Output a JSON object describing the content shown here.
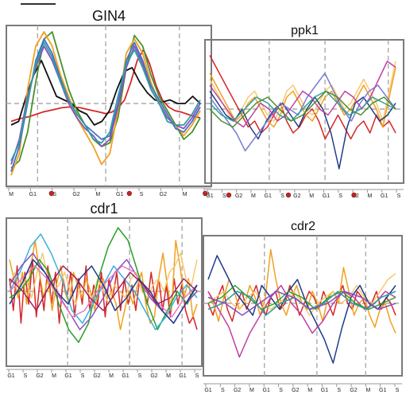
{
  "chart_data": [
    {
      "type": "line",
      "title": "GIN4",
      "phase_labels": [
        "M",
        "G1",
        "S",
        "G2",
        "M",
        "G1",
        "S",
        "G2",
        "M",
        "G1"
      ],
      "xlim": [
        0,
        60
      ],
      "ylim": [
        -1,
        1
      ],
      "marker_color": "#cc2222",
      "series": [
        {
          "color": "#d62728",
          "values": [
            -0.25,
            -0.22,
            -0.2,
            -0.18,
            -0.15,
            -0.12,
            -0.1,
            -0.08,
            -0.06,
            -0.05,
            -0.05,
            -0.06,
            -0.08,
            -0.1,
            -0.12,
            -0.14,
            -0.12,
            -0.06,
            0.05,
            0.3,
            0.6,
            0.75,
            0.55,
            0.25,
            0.05,
            -0.05,
            -0.1,
            -0.12,
            -0.15,
            -0.18,
            -0.2
          ]
        },
        {
          "color": "#111111",
          "values": [
            -0.3,
            -0.25,
            0.1,
            0.4,
            0.6,
            0.35,
            0.1,
            0.05,
            0.0,
            -0.1,
            -0.15,
            -0.3,
            -0.25,
            -0.1,
            0.2,
            0.45,
            0.5,
            0.3,
            0.15,
            0.05,
            0.02,
            0.05,
            0.0,
            0.0,
            0.1,
            0.0
          ]
        },
        {
          "color": "#4a8f2a",
          "values": [
            -0.9,
            -0.8,
            -0.4,
            0.3,
            0.9,
            1.0,
            0.6,
            0.2,
            -0.1,
            -0.3,
            -0.5,
            -0.6,
            -0.55,
            -0.2,
            0.5,
            0.95,
            0.8,
            0.4,
            0.1,
            -0.1,
            -0.3,
            -0.5,
            -0.4,
            -0.2
          ]
        },
        {
          "color": "#f0a020",
          "values": [
            -1.0,
            -0.7,
            0.2,
            0.8,
            1.0,
            0.8,
            0.4,
            0.1,
            -0.2,
            -0.4,
            -0.6,
            -0.85,
            -0.7,
            -0.1,
            0.7,
            0.9,
            0.7,
            0.3,
            0.0,
            -0.2,
            -0.3,
            -0.45,
            -0.3,
            -0.1
          ]
        },
        {
          "color": "#4472c4",
          "values": [
            -0.95,
            -0.6,
            0.0,
            0.6,
            0.9,
            0.7,
            0.35,
            0.05,
            -0.15,
            -0.3,
            -0.4,
            -0.5,
            -0.45,
            0.0,
            0.6,
            0.85,
            0.6,
            0.25,
            0.05,
            -0.15,
            -0.35,
            -0.4,
            -0.25,
            -0.05
          ]
        },
        {
          "color": "#8a4fbf",
          "values": [
            -0.85,
            -0.5,
            0.1,
            0.5,
            0.8,
            0.6,
            0.3,
            0.0,
            -0.2,
            -0.35,
            -0.45,
            -0.6,
            -0.5,
            -0.05,
            0.5,
            0.8,
            0.55,
            0.2,
            0.0,
            -0.2,
            -0.3,
            -0.35,
            -0.2,
            0.0
          ]
        },
        {
          "color": "#2ca0a0",
          "values": [
            -0.8,
            -0.55,
            0.05,
            0.55,
            0.85,
            0.65,
            0.3,
            0.05,
            -0.15,
            -0.3,
            -0.5,
            -0.55,
            -0.4,
            0.1,
            0.55,
            0.75,
            0.5,
            0.2,
            0.0,
            -0.25,
            -0.3,
            -0.3,
            -0.15,
            0.05
          ]
        }
      ]
    },
    {
      "type": "line",
      "title": "ppk1",
      "phase_labels": [
        "G1",
        "S",
        "G2",
        "M",
        "G1",
        "S",
        "G2",
        "M",
        "G1",
        "S",
        "G2",
        "M",
        "G1",
        "S"
      ],
      "xlim": [
        0,
        60
      ],
      "ylim": [
        -1,
        1
      ],
      "marker_color": "#cc2222",
      "series": [
        {
          "color": "#d62728",
          "values": [
            0.9,
            0.7,
            0.5,
            0.3,
            0.1,
            -0.1,
            -0.3,
            -0.2,
            -0.4,
            -0.3,
            -0.1,
            0.1,
            -0.2,
            -0.4,
            -0.3,
            -0.1,
            0.0,
            -0.2,
            -0.5,
            -0.3,
            -0.1,
            -0.3,
            -0.5,
            -0.3,
            -0.2,
            -0.4,
            -0.1,
            -0.3,
            -0.2,
            -0.4
          ]
        },
        {
          "color": "#f0a020",
          "values": [
            0.6,
            0.4,
            0.2,
            0.0,
            -0.2,
            -0.1,
            0.1,
            0.2,
            0.0,
            -0.2,
            -0.3,
            -0.1,
            0.2,
            0.3,
            0.1,
            -0.1,
            -0.2,
            0.0,
            0.2,
            0.3,
            0.1,
            -0.1,
            0.0,
            0.2,
            0.4,
            0.2,
            0.0,
            -0.3,
            0.2,
            0.7
          ]
        },
        {
          "color": "#f8c870",
          "values": [
            0.5,
            0.3,
            0.1,
            -0.1,
            -0.2,
            0.0,
            0.2,
            0.3,
            0.1,
            -0.1,
            -0.2,
            0.0,
            0.3,
            0.4,
            0.2,
            0.0,
            -0.1,
            0.1,
            0.3,
            0.4,
            0.2,
            0.0,
            0.1,
            0.3,
            0.5,
            0.3,
            0.1,
            -0.2,
            0.3,
            0.8
          ]
        },
        {
          "color": "#1f3c88",
          "values": [
            0.3,
            0.1,
            -0.1,
            -0.2,
            0.0,
            -0.3,
            -0.5,
            -0.2,
            0.0,
            0.1,
            -0.1,
            -0.3,
            0.0,
            0.2,
            0.0,
            -0.4,
            -1.0,
            -0.3,
            0.1,
            0.2,
            0.0,
            -0.2,
            -0.1,
            0.1
          ]
        },
        {
          "color": "#7a7fd0",
          "values": [
            0.2,
            0.0,
            -0.2,
            -0.4,
            -0.7,
            -0.5,
            -0.3,
            -0.1,
            0.1,
            0.0,
            -0.1,
            0.2,
            0.4,
            0.6,
            0.3,
            0.0,
            -0.2,
            0.1,
            0.3,
            0.4,
            0.2,
            0.0
          ]
        },
        {
          "color": "#c03fa0",
          "values": [
            0.4,
            0.2,
            0.0,
            -0.2,
            -0.3,
            -0.1,
            0.1,
            0.0,
            -0.2,
            -0.1,
            0.1,
            0.3,
            0.2,
            0.0,
            -0.1,
            0.1,
            0.3,
            0.2,
            0.0,
            0.2,
            0.5,
            0.8,
            0.7
          ]
        },
        {
          "color": "#2ca0a0",
          "values": [
            0.1,
            -0.1,
            -0.2,
            0.0,
            0.2,
            0.1,
            -0.1,
            -0.2,
            0.0,
            0.2,
            0.3,
            0.1,
            -0.1,
            0.0,
            0.2,
            0.1,
            0.0
          ]
        },
        {
          "color": "#4a8f2a",
          "values": [
            0.0,
            -0.2,
            -0.3,
            -0.1,
            0.1,
            0.2,
            0.0,
            -0.2,
            -0.1,
            0.1,
            0.3,
            0.2,
            0.0,
            -0.1,
            0.1,
            0.2,
            0.0
          ]
        }
      ]
    },
    {
      "type": "line",
      "title": "cdr1",
      "phase_labels": [
        "G1",
        "S",
        "G2",
        "M",
        "G1",
        "S",
        "G2",
        "M",
        "G1",
        "S",
        "G2",
        "M",
        "G1",
        "S"
      ],
      "xlim": [
        0,
        60
      ],
      "ylim": [
        -1,
        1
      ],
      "series": [
        {
          "color": "#d62728",
          "values": [
            0.2,
            -0.3,
            0.4,
            -0.5,
            0.3,
            -0.2,
            0.5,
            -0.4,
            0.2,
            -0.3,
            0.4,
            -0.2,
            0.3,
            -0.5,
            0.2,
            -0.1,
            0.3,
            -0.4,
            0.2,
            -0.2,
            0.4,
            -0.3,
            0.1,
            -0.2,
            0.3,
            -0.4,
            0.2,
            -0.1,
            0.3,
            -0.3,
            0.2,
            -0.2,
            0.1,
            -0.3,
            0.2,
            0.0,
            -0.2,
            0.3,
            -0.1,
            0.2,
            -0.3,
            0.1,
            -0.4,
            0.2,
            -0.2,
            0.1,
            -0.3,
            -0.5,
            -0.4,
            -0.6
          ]
        },
        {
          "color": "#f0a020",
          "values": [
            0.5,
            0.2,
            -0.1,
            0.3,
            -0.2,
            0.4,
            0.8,
            0.3,
            -0.1,
            0.2,
            -0.3,
            0.1,
            0.4,
            0.0,
            -0.2,
            0.3,
            0.1,
            -0.1,
            0.2,
            0.0,
            -0.3,
            0.1,
            0.2,
            -0.1,
            0.0,
            -0.2,
            -0.6,
            -0.3,
            0.0,
            -0.2,
            0.1,
            0.3,
            -0.2,
            -0.5,
            -0.4,
            0.2,
            0.6,
            0.1,
            -0.3,
            0.8,
            0.4,
            -0.1,
            0.2,
            -0.4,
            -0.2
          ]
        },
        {
          "color": "#f8c870",
          "values": [
            0.1,
            0.3,
            0.0,
            0.2,
            -0.1,
            0.3,
            0.6,
            0.2,
            0.0,
            0.1,
            0.3,
            0.0,
            -0.2,
            0.1,
            0.0,
            -0.1,
            0.2,
            0.0,
            -0.2,
            0.1,
            0.0,
            -0.1,
            0.2,
            0.3,
            0.0,
            -0.1,
            0.1,
            0.2,
            0.0,
            0.3,
            0.4,
            0.6,
            0.2,
            0.1,
            0.5
          ]
        },
        {
          "color": "#2aa02a",
          "values": [
            -0.1,
            0.0,
            0.2,
            0.5,
            0.3,
            -0.2,
            -0.6,
            -0.8,
            -0.5,
            0.2,
            0.7,
            1.0,
            0.8,
            0.3,
            -0.2,
            -0.6,
            -0.3,
            0.0,
            -0.2,
            0.1
          ]
        },
        {
          "color": "#39b0e0",
          "values": [
            0.0,
            0.3,
            0.7,
            0.9,
            0.6,
            0.2,
            -0.3,
            -0.5,
            -0.2,
            0.1,
            0.4,
            0.2,
            0.0,
            -0.3,
            -0.6,
            -0.4,
            -0.1,
            0.1,
            -0.1
          ]
        },
        {
          "color": "#8a4fbf",
          "values": [
            0.1,
            0.4,
            0.6,
            0.3,
            0.0,
            -0.3,
            -0.6,
            -0.4,
            -0.1,
            0.3,
            0.5,
            0.2,
            -0.1,
            -0.3,
            -0.5,
            -0.2,
            0.0
          ]
        },
        {
          "color": "#e377c2",
          "values": [
            0.0,
            0.2,
            0.4,
            0.2,
            -0.1,
            -0.4,
            -0.3,
            0.0,
            0.2,
            0.4,
            0.3,
            0.0,
            -0.2,
            -0.4,
            -0.1,
            0.1
          ]
        },
        {
          "color": "#1f3c88",
          "values": [
            -0.2,
            0.1,
            0.5,
            0.3,
            0.0,
            -0.2,
            0.2,
            0.4,
            0.1,
            -0.3,
            -0.1,
            0.2,
            0.0,
            -0.3,
            -0.5,
            -0.2,
            0.1
          ]
        },
        {
          "color": "#9a2060",
          "values": [
            0.2,
            0.0,
            -0.3,
            0.1,
            0.4,
            0.2,
            -0.1,
            -0.3,
            0.0,
            0.3,
            0.1,
            -0.2,
            -0.1,
            0.2,
            0.0
          ]
        }
      ]
    },
    {
      "type": "line",
      "title": "cdr2",
      "phase_labels": [
        "G1",
        "S",
        "G2",
        "M",
        "G1",
        "S",
        "G2",
        "M",
        "G1",
        "S",
        "G2",
        "M",
        "G1",
        "S"
      ],
      "xlim": [
        0,
        60
      ],
      "ylim": [
        -1,
        1
      ],
      "series": [
        {
          "color": "#d62728",
          "values": [
            0.0,
            -0.2,
            0.1,
            0.3,
            -0.1,
            -0.3,
            0.0,
            0.2,
            -0.1,
            0.1,
            0.3,
            0.0,
            -0.2,
            0.1,
            0.2,
            -0.1,
            0.0,
            0.3,
            0.1,
            -0.2,
            0.0,
            0.2,
            0.1,
            -0.1,
            0.2,
            0.0,
            -0.2,
            0.1,
            0.3,
            0.0,
            -0.1,
            0.2,
            0.1,
            -0.1,
            0.0,
            0.2,
            -0.1,
            0.1,
            0.0,
            -0.2
          ]
        },
        {
          "color": "#f0a020",
          "values": [
            0.2,
            0.0,
            -0.3,
            0.1,
            0.4,
            0.2,
            -0.1,
            0.0,
            0.3,
            0.1,
            -0.2,
            0.1,
            0.9,
            0.4,
            0.0,
            -0.2,
            0.1,
            0.3,
            0.0,
            -0.1,
            0.2,
            0.0,
            -0.3,
            0.1,
            0.2,
            0.0,
            0.6,
            0.2,
            -0.2,
            0.0,
            0.1,
            -0.2,
            -0.4,
            -0.1,
            0.0,
            -0.3,
            -0.5
          ]
        },
        {
          "color": "#f8c870",
          "values": [
            0.0,
            0.1,
            0.2,
            0.0,
            -0.1,
            0.1,
            0.2,
            0.0,
            -0.1,
            0.0,
            0.1,
            0.2,
            0.0,
            -0.2,
            0.0,
            0.1,
            0.2,
            0.0,
            0.1,
            0.3,
            0.1,
            0.0,
            0.2,
            0.4,
            0.5
          ]
        },
        {
          "color": "#1f3c88",
          "values": [
            0.4,
            0.8,
            0.5,
            0.2,
            0.0,
            -0.2,
            0.3,
            0.1,
            -0.1,
            0.2,
            0.4,
            0.0,
            -0.3,
            -0.6,
            -1.0,
            -0.4,
            0.1,
            0.3,
            0.0,
            -0.1,
            0.1,
            0.3
          ]
        },
        {
          "color": "#c03fa0",
          "values": [
            0.2,
            -0.1,
            -0.4,
            -0.9,
            -0.5,
            -0.2,
            0.1,
            0.3,
            0.0,
            -0.2,
            -0.5,
            -0.3,
            0.0,
            0.2,
            0.1,
            -0.1,
            0.0,
            0.2,
            0.1
          ]
        },
        {
          "color": "#2aa02a",
          "values": [
            0.0,
            0.1,
            0.3,
            0.1,
            -0.1,
            0.0,
            0.2,
            0.1,
            -0.1,
            0.1,
            0.2,
            0.0,
            -0.1,
            0.0,
            0.1
          ]
        },
        {
          "color": "#2ca0a0",
          "values": [
            -0.1,
            0.0,
            0.2,
            0.1,
            -0.2,
            0.0,
            0.1,
            -0.1,
            0.0,
            0.2,
            0.0,
            -0.1,
            0.1,
            0.2
          ]
        },
        {
          "color": "#8a4fbf",
          "values": [
            0.1,
            0.0,
            -0.2,
            0.0,
            0.2,
            0.1,
            -0.1,
            0.0,
            0.2,
            0.1,
            -0.1,
            0.0
          ]
        }
      ]
    }
  ]
}
